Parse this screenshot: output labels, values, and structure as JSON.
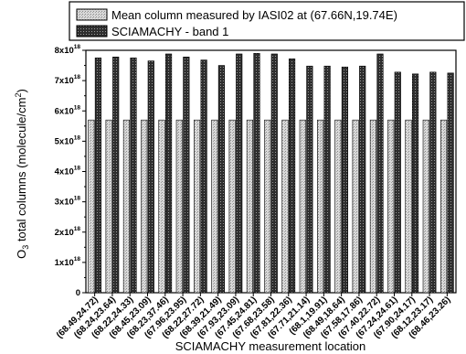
{
  "chart_data": {
    "type": "bar",
    "xlabel": "SCIAMACHY measurement location",
    "ylabel_main": "O",
    "ylabel_sub": "3",
    "ylabel_rest": " total columns (molecule/cm",
    "ylabel_sup": "2",
    "ylabel_end": ")",
    "ylim": [
      0,
      8e+18
    ],
    "yticks": [
      {
        "value": 0,
        "mantissa": "0",
        "exp": ""
      },
      {
        "value": 1e+18,
        "mantissa": "1x10",
        "exp": "18"
      },
      {
        "value": 2e+18,
        "mantissa": "2x10",
        "exp": "18"
      },
      {
        "value": 3e+18,
        "mantissa": "3x10",
        "exp": "18"
      },
      {
        "value": 4e+18,
        "mantissa": "4x10",
        "exp": "18"
      },
      {
        "value": 5e+18,
        "mantissa": "5x10",
        "exp": "18"
      },
      {
        "value": 6e+18,
        "mantissa": "6x10",
        "exp": "18"
      },
      {
        "value": 7e+18,
        "mantissa": "7x10",
        "exp": "18"
      },
      {
        "value": 8e+18,
        "mantissa": "8x10",
        "exp": "18"
      }
    ],
    "categories": [
      "(68.49,24.72)",
      "(68.24,23.64)",
      "(68.22,24.33)",
      "(68.45,23.09)",
      "(68.23,37.46)",
      "(67.96,23.95)",
      "(68.22,27.72)",
      "(68.39,21.49)",
      "(67.93,23.09)",
      "(67.45,24.81)",
      "(67.68,23.58)",
      "(67.81,22.36)",
      "(67.71,21.14)",
      "(68.1,19.91)",
      "(68.49,18.64)",
      "(67.58,17.86)",
      "(67.40,22.72)",
      "(67.24,24.61)",
      "(67.90,24.17)",
      "(68.12,23.17)",
      "(68.46,23.26)"
    ],
    "series": [
      {
        "name": "Mean column measured by IASI02 at (67.66N,19.74E)",
        "color": "#c8c8c8",
        "pattern": "light-dots",
        "values": [
          5.7e+18,
          5.7e+18,
          5.7e+18,
          5.7e+18,
          5.7e+18,
          5.7e+18,
          5.7e+18,
          5.7e+18,
          5.7e+18,
          5.7e+18,
          5.7e+18,
          5.7e+18,
          5.7e+18,
          5.7e+18,
          5.7e+18,
          5.7e+18,
          5.7e+18,
          5.7e+18,
          5.7e+18,
          5.7e+18,
          5.7e+18
        ]
      },
      {
        "name": "SCIAMACHY - band 1",
        "color": "#3a3a3a",
        "pattern": "dark-grid",
        "values": [
          7.75e+18,
          7.78e+18,
          7.75e+18,
          7.65e+18,
          7.88e+18,
          7.78e+18,
          7.68e+18,
          7.5e+18,
          7.88e+18,
          7.9e+18,
          7.88e+18,
          7.72e+18,
          7.48e+18,
          7.48e+18,
          7.45e+18,
          7.48e+18,
          7.88e+18,
          7.28e+18,
          7.22e+18,
          7.28e+18,
          7.25e+18
        ]
      }
    ],
    "legend_position": "top"
  }
}
